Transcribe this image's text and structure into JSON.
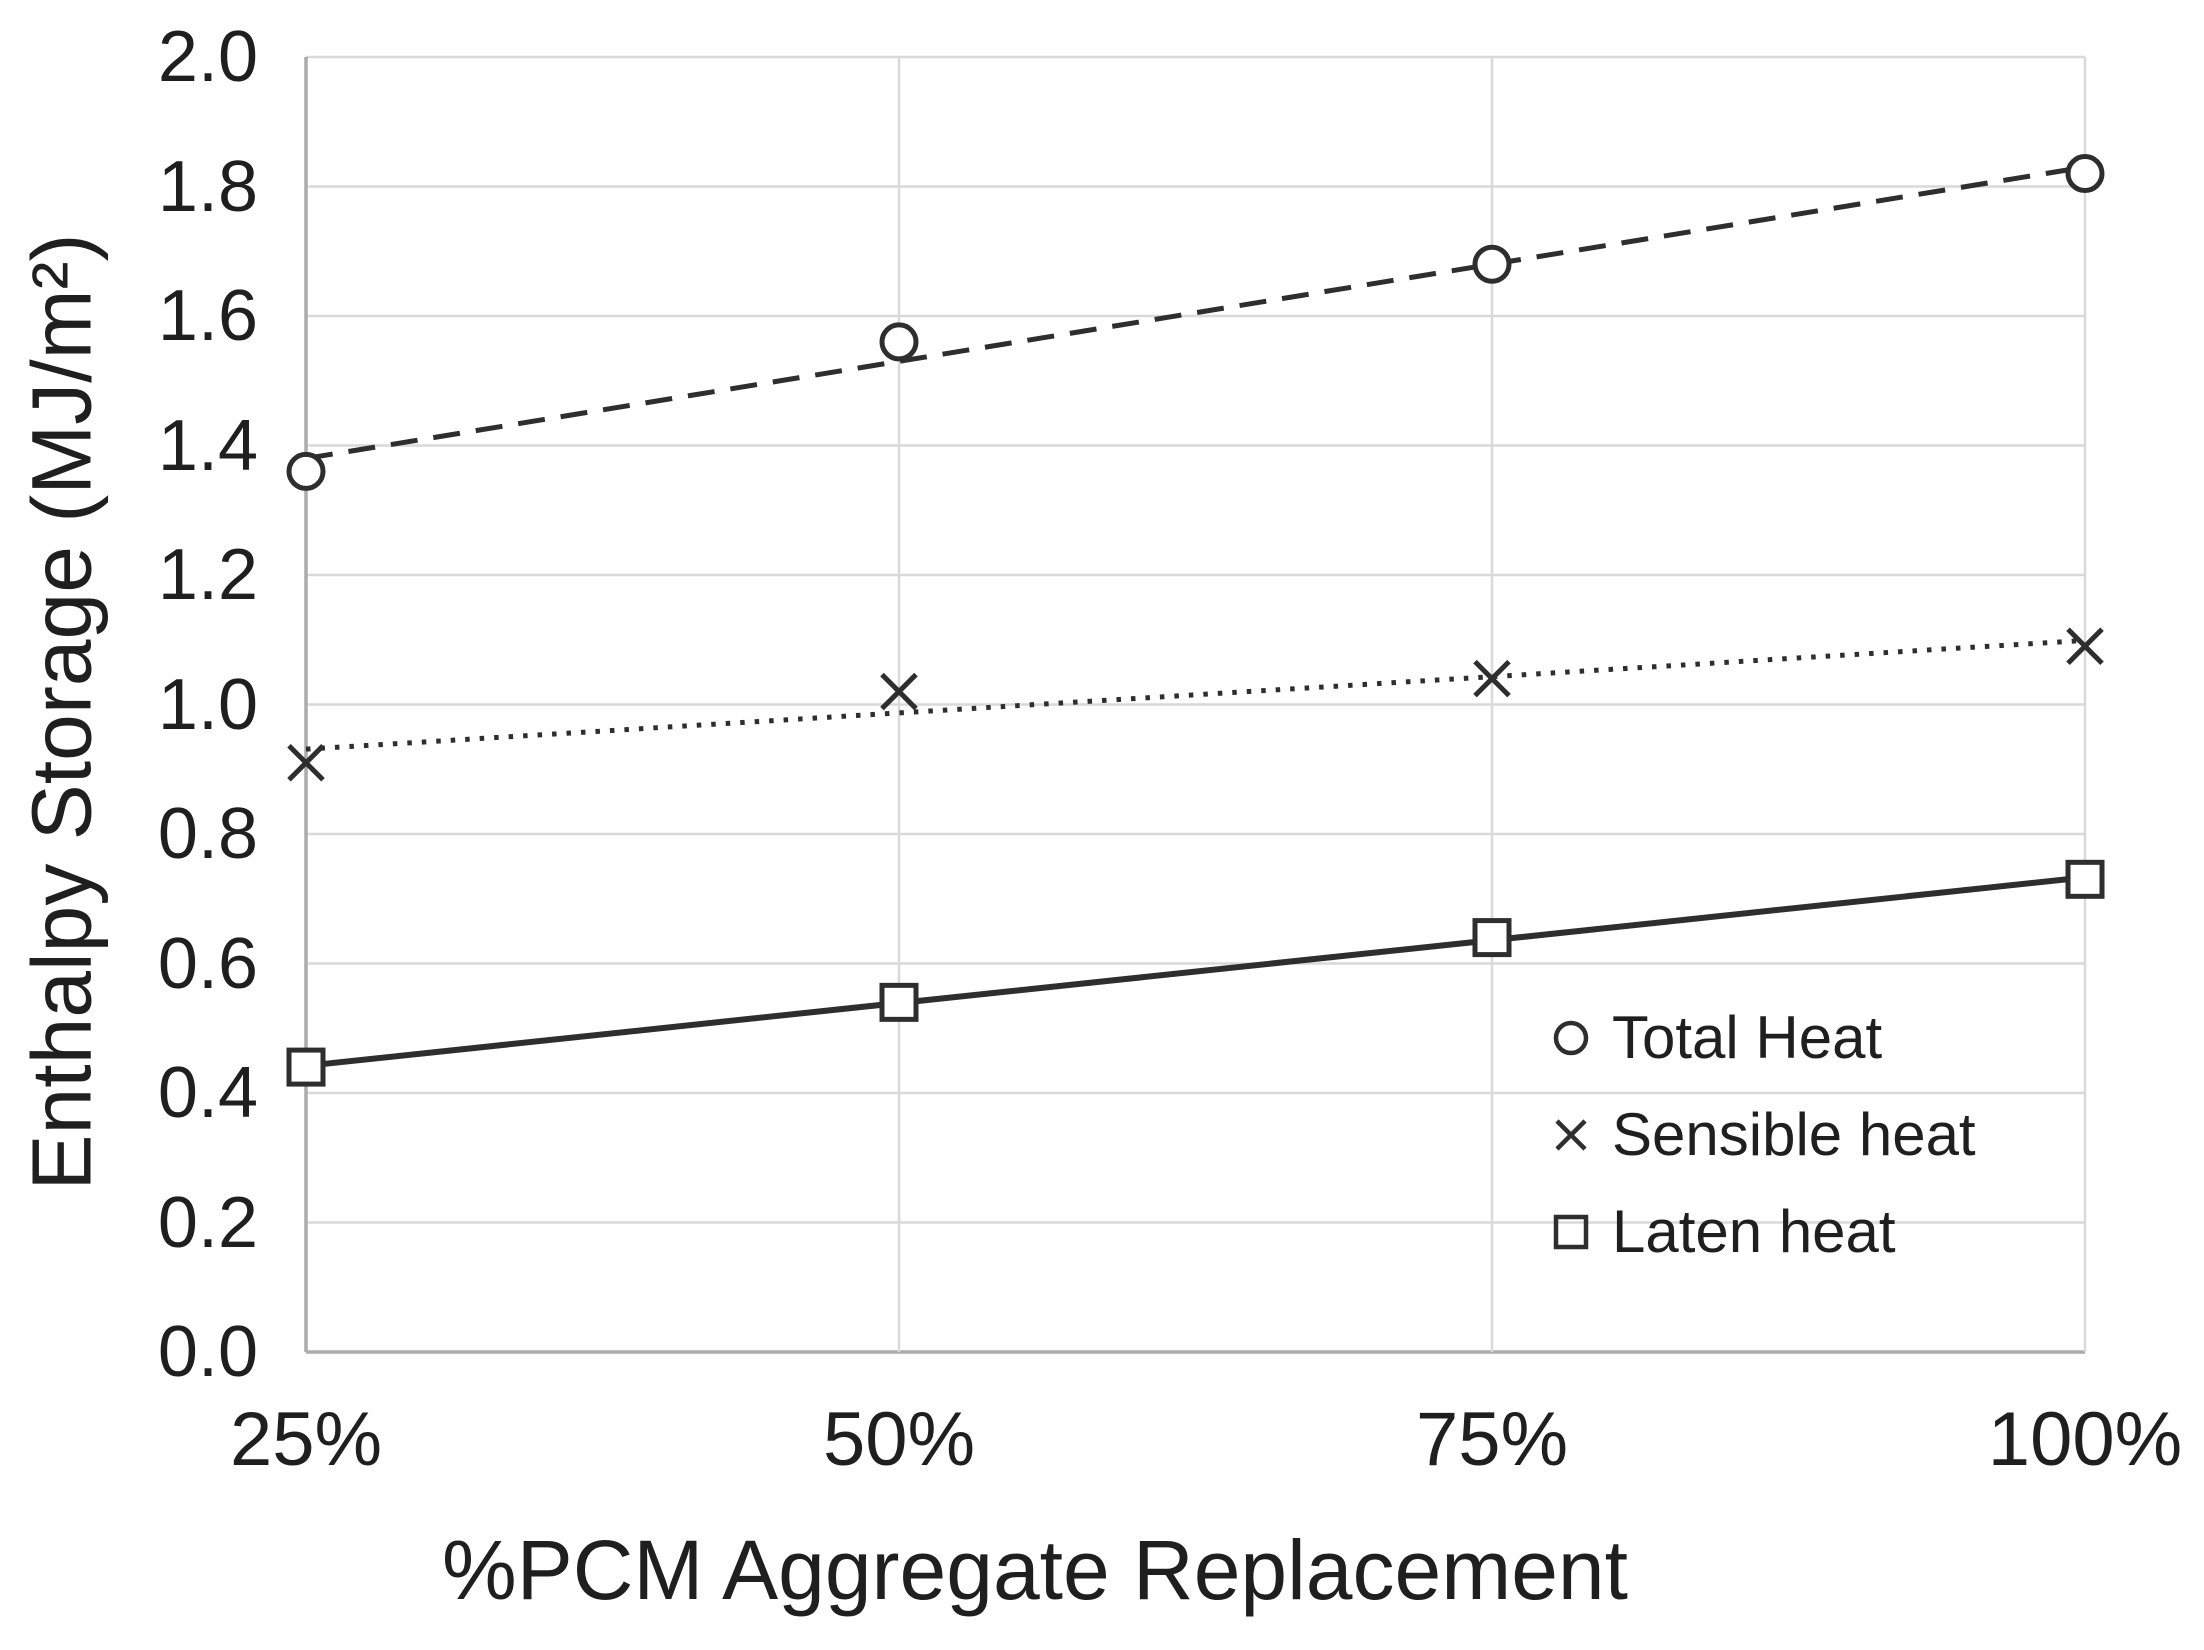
{
  "chart_data": {
    "type": "line",
    "title": "",
    "xlabel": "%PCM Aggregate Replacement",
    "ylabel": "Enthalpy Storage (MJ/m²)",
    "categories": [
      "25%",
      "50%",
      "75%",
      "100%"
    ],
    "x_values": [
      25,
      50,
      75,
      100
    ],
    "ylim": [
      0.0,
      2.0
    ],
    "ytick_labels": [
      "0.0",
      "0.2",
      "0.4",
      "0.6",
      "0.8",
      "1.0",
      "1.2",
      "1.4",
      "1.6",
      "1.8",
      "2.0"
    ],
    "grid": true,
    "legend_position": "inside-lower-right",
    "series": [
      {
        "name": "Total Heat",
        "marker": "circle",
        "line_style": "dashed",
        "values": [
          1.36,
          1.56,
          1.68,
          1.82
        ]
      },
      {
        "name": "Sensible heat",
        "marker": "x",
        "line_style": "dotted",
        "values": [
          0.91,
          1.02,
          1.04,
          1.09
        ]
      },
      {
        "name": "Laten heat",
        "marker": "square",
        "line_style": "solid",
        "values": [
          0.44,
          0.54,
          0.64,
          0.73
        ]
      }
    ],
    "colors": {
      "series": "#2e2e2e",
      "gridline": "#d9d9d9",
      "axis": "#ababab",
      "text": "#1f1f1f"
    }
  }
}
